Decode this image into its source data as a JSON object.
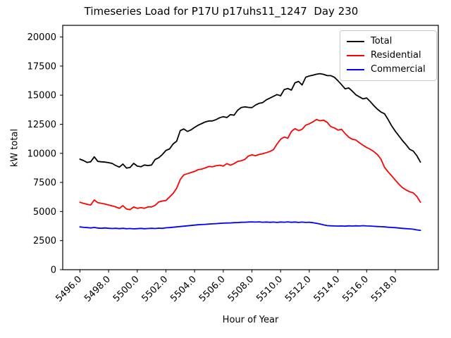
{
  "chart_data": {
    "type": "line",
    "title": "Timeseries Load for P17U p17uhs11_1247  Day 230",
    "xlabel": "Hour of Year",
    "ylabel": "kW total",
    "xlim": [
      5494.8,
      5521.0
    ],
    "ylim": [
      0,
      21000
    ],
    "grid": false,
    "legend_position": "upper right",
    "x_tick_values": [
      5496,
      5498,
      5500,
      5502,
      5504,
      5506,
      5508,
      5510,
      5512,
      5514,
      5516,
      5518
    ],
    "x_tick_labels": [
      "5496.0",
      "5498.0",
      "5500.0",
      "5502.0",
      "5504.0",
      "5506.0",
      "5508.0",
      "5510.0",
      "5512.0",
      "5514.0",
      "5516.0",
      "5518.0"
    ],
    "y_tick_values": [
      0,
      2500,
      5000,
      7500,
      10000,
      12500,
      15000,
      17500,
      20000
    ],
    "y_tick_labels": [
      "0",
      "2500",
      "5000",
      "7500",
      "10000",
      "12500",
      "15000",
      "17500",
      "20000"
    ],
    "x": [
      5496.0,
      5496.25,
      5496.5,
      5496.75,
      5497.0,
      5497.25,
      5497.5,
      5497.75,
      5498.0,
      5498.25,
      5498.5,
      5498.75,
      5499.0,
      5499.25,
      5499.5,
      5499.75,
      5500.0,
      5500.25,
      5500.5,
      5500.75,
      5501.0,
      5501.25,
      5501.5,
      5501.75,
      5502.0,
      5502.25,
      5502.5,
      5502.75,
      5503.0,
      5503.25,
      5503.5,
      5503.75,
      5504.0,
      5504.25,
      5504.5,
      5504.75,
      5505.0,
      5505.25,
      5505.5,
      5505.75,
      5506.0,
      5506.25,
      5506.5,
      5506.75,
      5507.0,
      5507.25,
      5507.5,
      5507.75,
      5508.0,
      5508.25,
      5508.5,
      5508.75,
      5509.0,
      5509.25,
      5509.5,
      5509.75,
      5510.0,
      5510.25,
      5510.5,
      5510.75,
      5511.0,
      5511.25,
      5511.5,
      5511.75,
      5512.0,
      5512.25,
      5512.5,
      5512.75,
      5513.0,
      5513.25,
      5513.5,
      5513.75,
      5514.0,
      5514.25,
      5514.5,
      5514.75,
      5515.0,
      5515.25,
      5515.5,
      5515.75,
      5516.0,
      5516.25,
      5516.5,
      5516.75,
      5517.0,
      5517.25,
      5517.5,
      5517.75,
      5518.0,
      5518.25,
      5518.5,
      5518.75,
      5519.0,
      5519.25,
      5519.5,
      5519.75
    ],
    "series": [
      {
        "name": "Total",
        "color": "#000000",
        "values": [
          9500,
          9380,
          9220,
          9280,
          9700,
          9310,
          9270,
          9250,
          9200,
          9130,
          8950,
          8820,
          9080,
          8730,
          8790,
          9140,
          8900,
          8850,
          9000,
          8950,
          9000,
          9480,
          9620,
          9900,
          10250,
          10380,
          10800,
          11050,
          11950,
          12100,
          11880,
          12020,
          12230,
          12420,
          12560,
          12700,
          12780,
          12790,
          12900,
          13060,
          13150,
          13080,
          13330,
          13280,
          13700,
          13940,
          14000,
          13950,
          13930,
          14150,
          14300,
          14360,
          14600,
          14750,
          14900,
          15050,
          14950,
          15480,
          15570,
          15430,
          16060,
          16180,
          15880,
          16540,
          16650,
          16720,
          16800,
          16850,
          16790,
          16680,
          16680,
          16540,
          16240,
          15900,
          15550,
          15620,
          15350,
          15030,
          14850,
          14680,
          14760,
          14450,
          14100,
          13800,
          13550,
          13400,
          12900,
          12350,
          11900,
          11500,
          11100,
          10750,
          10350,
          10200,
          9800,
          9250
        ]
      },
      {
        "name": "Residential",
        "color": "#ff0000",
        "values": [
          5800,
          5700,
          5620,
          5560,
          6000,
          5760,
          5700,
          5640,
          5560,
          5480,
          5390,
          5270,
          5510,
          5210,
          5160,
          5390,
          5270,
          5330,
          5280,
          5390,
          5400,
          5530,
          5830,
          5900,
          5950,
          6250,
          6550,
          7000,
          7750,
          8150,
          8250,
          8350,
          8450,
          8600,
          8650,
          8750,
          8870,
          8850,
          8930,
          8980,
          8900,
          9120,
          8980,
          9120,
          9300,
          9360,
          9480,
          9760,
          9870,
          9800,
          9900,
          9960,
          10060,
          10160,
          10310,
          10800,
          11210,
          11400,
          11300,
          11880,
          12120,
          11950,
          12060,
          12420,
          12540,
          12700,
          12910,
          12800,
          12850,
          12660,
          12300,
          12180,
          12000,
          12060,
          11700,
          11390,
          11210,
          11150,
          10900,
          10700,
          10500,
          10350,
          10150,
          9900,
          9500,
          8800,
          8400,
          8060,
          7700,
          7350,
          7050,
          6850,
          6700,
          6600,
          6300,
          5800
        ]
      },
      {
        "name": "Commercial",
        "color": "#0000ff",
        "values": [
          3680,
          3640,
          3620,
          3590,
          3630,
          3580,
          3560,
          3590,
          3560,
          3540,
          3560,
          3530,
          3560,
          3520,
          3540,
          3510,
          3530,
          3550,
          3520,
          3540,
          3560,
          3540,
          3570,
          3550,
          3600,
          3620,
          3650,
          3680,
          3710,
          3740,
          3770,
          3800,
          3830,
          3860,
          3880,
          3900,
          3920,
          3940,
          3960,
          3980,
          4000,
          4010,
          4020,
          4040,
          4050,
          4070,
          4080,
          4100,
          4110,
          4090,
          4110,
          4080,
          4100,
          4070,
          4090,
          4060,
          4100,
          4080,
          4110,
          4070,
          4100,
          4060,
          4090,
          4060,
          4080,
          4040,
          3990,
          3930,
          3850,
          3790,
          3770,
          3760,
          3750,
          3760,
          3740,
          3770,
          3750,
          3770,
          3760,
          3780,
          3760,
          3750,
          3730,
          3710,
          3700,
          3680,
          3650,
          3630,
          3610,
          3580,
          3550,
          3530,
          3510,
          3480,
          3420,
          3380
        ]
      }
    ]
  }
}
